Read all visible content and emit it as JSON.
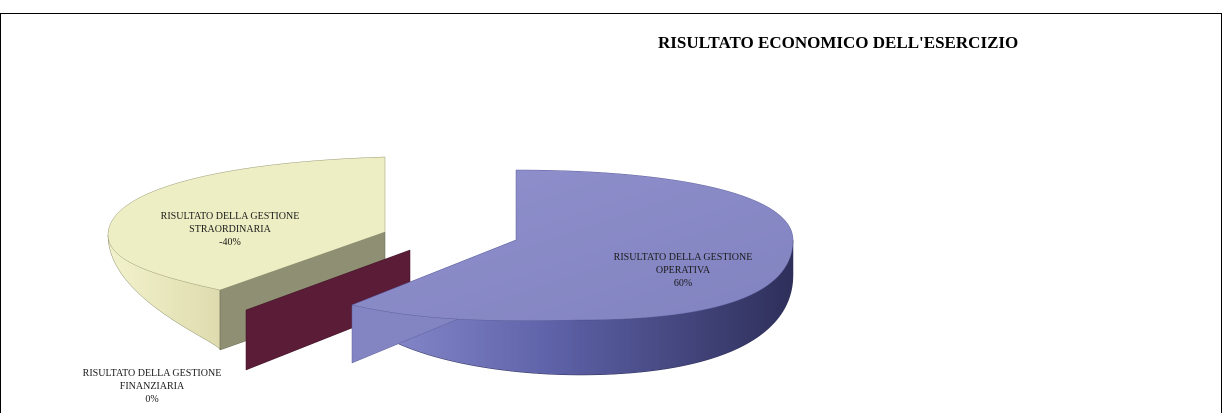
{
  "chart_data": {
    "type": "pie",
    "title": "RISULTATO ECONOMICO DELL'ESERCIZIO",
    "slices": [
      {
        "label_lines": [
          "RISULTATO DELLA GESTIONE",
          "OPERATIVA"
        ],
        "percent_label": "60%",
        "value": 60,
        "color": "#8a8cc4"
      },
      {
        "label_lines": [
          "RISULTATO DELLA GESTIONE",
          "FINANZIARIA"
        ],
        "percent_label": "0%",
        "value": 0,
        "color": "#5a1c36"
      },
      {
        "label_lines": [
          "RISULTATO DELLA GESTIONE",
          "STRAORDINARIA"
        ],
        "percent_label": "-40%",
        "value": -40,
        "color": "#eeeec4"
      }
    ]
  }
}
